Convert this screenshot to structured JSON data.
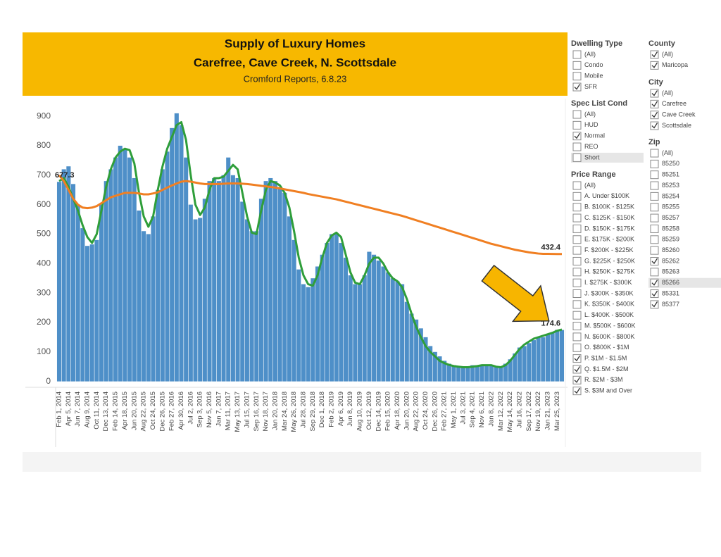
{
  "chart_data": {
    "type": "bar",
    "title": "Supply of Luxury Homes",
    "subtitle": "Carefree, Cave Creek, N. Scottsdale",
    "source": "Cromford Reports, 6.8.23",
    "categories": [
      "Feb 1, 2014",
      null,
      "Apr 5, 2014",
      null,
      "Jun 7, 2014",
      null,
      "Aug 9, 2014",
      null,
      "Oct 11, 2014",
      null,
      "Dec 13, 2014",
      null,
      "Feb 14, 2015",
      null,
      "Apr 18, 2015",
      null,
      "Jun 20, 2015",
      null,
      "Aug 22, 2015",
      null,
      "Oct 24, 2015",
      null,
      "Dec 26, 2015",
      null,
      "Feb 27, 2016",
      null,
      "Apr 30, 2016",
      null,
      "Jul 2, 2016",
      null,
      "Sep 3, 2016",
      null,
      "Nov 5, 2016",
      null,
      "Jan 7, 2017",
      null,
      "Mar 11, 2017",
      null,
      "May 13, 2017",
      null,
      "Jul 15, 2017",
      null,
      "Sep 16, 2017",
      null,
      "Nov 18, 2017",
      null,
      "Jan 20, 2018",
      null,
      "Mar 24, 2018",
      null,
      "May 26, 2018",
      null,
      "Jul 28, 2018",
      null,
      "Sep 29, 2018",
      null,
      "Dec 1, 2018",
      null,
      "Feb 2, 2019",
      null,
      "Apr 6, 2019",
      null,
      "Jun 8, 2019",
      null,
      "Aug 10, 2019",
      null,
      "Oct 12, 2019",
      null,
      "Dec 14, 2019",
      null,
      "Feb 15, 2020",
      null,
      "Apr 18, 2020",
      null,
      "Jun 20, 2020",
      null,
      "Aug 22, 2020",
      null,
      "Oct 24, 2020",
      null,
      "Dec 26, 2020",
      null,
      "Feb 27, 2021",
      null,
      "May 1, 2021",
      null,
      "Jul 3, 2021",
      null,
      "Sep 4, 2021",
      null,
      "Nov 6, 2021",
      null,
      "Jan 8, 2022",
      null,
      "Mar 12, 2022",
      null,
      "May 14, 2022",
      null,
      "Jul 16, 2022",
      null,
      "Sep 17, 2022",
      null,
      "Nov 19, 2022",
      null,
      "Jan 21, 2023",
      null,
      "Mar 25, 2023",
      null
    ],
    "series": [
      {
        "type": "bar",
        "color": "#4e8fc8",
        "values": [
          677.3,
          720,
          730,
          670,
          600,
          520,
          460,
          465,
          480,
          600,
          680,
          720,
          760,
          800,
          790,
          760,
          690,
          580,
          510,
          500,
          560,
          650,
          720,
          780,
          860,
          910,
          870,
          760,
          600,
          550,
          555,
          620,
          680,
          690,
          680,
          700,
          760,
          700,
          690,
          610,
          550,
          510,
          510,
          620,
          680,
          690,
          680,
          660,
          640,
          560,
          480,
          380,
          330,
          320,
          350,
          390,
          430,
          470,
          500,
          500,
          470,
          420,
          360,
          330,
          330,
          360,
          440,
          430,
          410,
          390,
          370,
          350,
          340,
          330,
          270,
          230,
          210,
          180,
          150,
          120,
          100,
          85,
          70,
          60,
          55,
          50,
          48,
          50,
          55,
          55,
          55,
          55,
          55,
          50,
          50,
          60,
          75,
          95,
          115,
          120,
          130,
          140,
          150,
          150,
          160,
          165,
          175,
          174.6
        ],
        "value_labels": [
          "677.3",
          null,
          null,
          null,
          null,
          null,
          null,
          null,
          null,
          null,
          null,
          null,
          null,
          null,
          null,
          null,
          null,
          null,
          null,
          null,
          null,
          null,
          null,
          null,
          null,
          null,
          null,
          null,
          null,
          null,
          null,
          null,
          null,
          null,
          null,
          null,
          null,
          null,
          null,
          null,
          null,
          null,
          null,
          null,
          null,
          null,
          null,
          null,
          null,
          null,
          null,
          null,
          null,
          null,
          null,
          null,
          null,
          null,
          null,
          null,
          null,
          null,
          null,
          null,
          null,
          null,
          null,
          null,
          null,
          null,
          null,
          null,
          null,
          null,
          null,
          null,
          null,
          null,
          null,
          null,
          null,
          null,
          null,
          null,
          null,
          null,
          null,
          null,
          null,
          null,
          null,
          null,
          null,
          null,
          null,
          null,
          null,
          null,
          null,
          null,
          null,
          null,
          null,
          null,
          null,
          null,
          null,
          "174.6"
        ]
      },
      {
        "type": "line",
        "color": "#2f9e3a",
        "values": [
          680,
          690,
          660,
          620,
          580,
          530,
          490,
          470,
          500,
          580,
          660,
          720,
          760,
          780,
          790,
          785,
          740,
          640,
          560,
          525,
          560,
          650,
          730,
          790,
          830,
          870,
          880,
          820,
          700,
          600,
          565,
          590,
          650,
          690,
          690,
          695,
          715,
          735,
          720,
          640,
          560,
          505,
          500,
          580,
          650,
          680,
          675,
          665,
          640,
          590,
          510,
          420,
          360,
          330,
          325,
          360,
          420,
          470,
          495,
          505,
          490,
          430,
          370,
          335,
          330,
          360,
          400,
          420,
          420,
          400,
          370,
          350,
          340,
          320,
          280,
          230,
          185,
          150,
          120,
          100,
          85,
          70,
          62,
          56,
          52,
          50,
          48,
          48,
          50,
          52,
          55,
          55,
          55,
          50,
          48,
          55,
          70,
          90,
          110,
          125,
          135,
          145,
          150,
          155,
          160,
          165,
          172,
          176
        ]
      },
      {
        "type": "line",
        "color": "#f07f22",
        "values": [
          700,
          680,
          650,
          620,
          600,
          590,
          588,
          590,
          595,
          605,
          615,
          625,
          630,
          635,
          640,
          640,
          640,
          638,
          635,
          635,
          638,
          642,
          650,
          658,
          665,
          672,
          678,
          680,
          678,
          675,
          672,
          670,
          670,
          670,
          670,
          671,
          672,
          672,
          672,
          671,
          670,
          668,
          666,
          664,
          662,
          660,
          658,
          655,
          652,
          649,
          646,
          643,
          640,
          636,
          633,
          630,
          627,
          624,
          621,
          618,
          614,
          610,
          606,
          602,
          598,
          594,
          590,
          586,
          582,
          578,
          574,
          570,
          566,
          562,
          557,
          552,
          547,
          542,
          537,
          532,
          527,
          522,
          517,
          512,
          507,
          502,
          497,
          492,
          487,
          482,
          477,
          472,
          467,
          463,
          459,
          455,
          451,
          447,
          444,
          441,
          438,
          436,
          434,
          433,
          432.8,
          432.6,
          432.5,
          432.4
        ],
        "value_labels": [
          null,
          null,
          null,
          null,
          null,
          null,
          null,
          null,
          null,
          null,
          null,
          null,
          null,
          null,
          null,
          null,
          null,
          null,
          null,
          null,
          null,
          null,
          null,
          null,
          null,
          null,
          null,
          null,
          null,
          null,
          null,
          null,
          null,
          null,
          null,
          null,
          null,
          null,
          null,
          null,
          null,
          null,
          null,
          null,
          null,
          null,
          null,
          null,
          null,
          null,
          null,
          null,
          null,
          null,
          null,
          null,
          null,
          null,
          null,
          null,
          null,
          null,
          null,
          null,
          null,
          null,
          null,
          null,
          null,
          null,
          null,
          null,
          null,
          null,
          null,
          null,
          null,
          null,
          null,
          null,
          null,
          null,
          null,
          null,
          null,
          null,
          null,
          null,
          null,
          null,
          null,
          null,
          null,
          null,
          null,
          null,
          null,
          null,
          null,
          null,
          null,
          null,
          null,
          null,
          null,
          null,
          null,
          "432.4"
        ]
      }
    ],
    "ylim": [
      -20,
      960
    ],
    "yticks": [
      0,
      100,
      200,
      300,
      400,
      500,
      600,
      700,
      800,
      900
    ],
    "grid": false,
    "title_color": "#f7b800"
  },
  "filters": [
    {
      "title": "Dwelling Type",
      "items": [
        {
          "label": "(All)",
          "checked": false
        },
        {
          "label": "Condo",
          "checked": false
        },
        {
          "label": "Mobile",
          "checked": false
        },
        {
          "label": "SFR",
          "checked": true
        }
      ]
    },
    {
      "title": "Spec List Cond",
      "items": [
        {
          "label": "(All)",
          "checked": false
        },
        {
          "label": "HUD",
          "checked": false
        },
        {
          "label": "Normal",
          "checked": true
        },
        {
          "label": "REO",
          "checked": false
        },
        {
          "label": "Short",
          "checked": false,
          "highlighted": true
        }
      ]
    },
    {
      "title": "Price Range",
      "items": [
        {
          "label": "(All)",
          "checked": false
        },
        {
          "label": "A. Under $100K",
          "checked": false
        },
        {
          "label": "B. $100K - $125K",
          "checked": false
        },
        {
          "label": "C. $125K - $150K",
          "checked": false
        },
        {
          "label": "D. $150K - $175K",
          "checked": false
        },
        {
          "label": "E. $175K - $200K",
          "checked": false
        },
        {
          "label": "F. $200K - $225K",
          "checked": false
        },
        {
          "label": "G. $225K - $250K",
          "checked": false
        },
        {
          "label": "H. $250K - $275K",
          "checked": false
        },
        {
          "label": "I. $275K - $300K",
          "checked": false
        },
        {
          "label": "J. $300K - $350K",
          "checked": false
        },
        {
          "label": "K. $350K - $400K",
          "checked": false
        },
        {
          "label": "L. $400K - $500K",
          "checked": false
        },
        {
          "label": "M. $500K - $600K",
          "checked": false
        },
        {
          "label": "N. $600K - $800K",
          "checked": false
        },
        {
          "label": "O. $800K - $1M",
          "checked": false
        },
        {
          "label": "P. $1M - $1.5M",
          "checked": true
        },
        {
          "label": "Q. $1.5M - $2M",
          "checked": true
        },
        {
          "label": "R. $2M - $3M",
          "checked": true
        },
        {
          "label": "S. $3M and Over",
          "checked": true
        }
      ]
    },
    {
      "title": "County",
      "items": [
        {
          "label": "(All)",
          "checked": true
        },
        {
          "label": "Maricopa",
          "checked": true
        }
      ]
    },
    {
      "title": "City",
      "items": [
        {
          "label": "(All)",
          "checked": true
        },
        {
          "label": "Carefree",
          "checked": true
        },
        {
          "label": "Cave Creek",
          "checked": true
        },
        {
          "label": "Scottsdale",
          "checked": true
        }
      ]
    },
    {
      "title": "Zip",
      "items": [
        {
          "label": "(All)",
          "checked": false
        },
        {
          "label": "85250",
          "checked": false
        },
        {
          "label": "85251",
          "checked": false
        },
        {
          "label": "85253",
          "checked": false
        },
        {
          "label": "85254",
          "checked": false
        },
        {
          "label": "85255",
          "checked": false
        },
        {
          "label": "85257",
          "checked": false
        },
        {
          "label": "85258",
          "checked": false
        },
        {
          "label": "85259",
          "checked": false
        },
        {
          "label": "85260",
          "checked": false
        },
        {
          "label": "85262",
          "checked": true
        },
        {
          "label": "85263",
          "checked": false
        },
        {
          "label": "85266",
          "checked": true,
          "highlighted": true
        },
        {
          "label": "85331",
          "checked": true
        },
        {
          "label": "85377",
          "checked": true
        }
      ]
    }
  ]
}
